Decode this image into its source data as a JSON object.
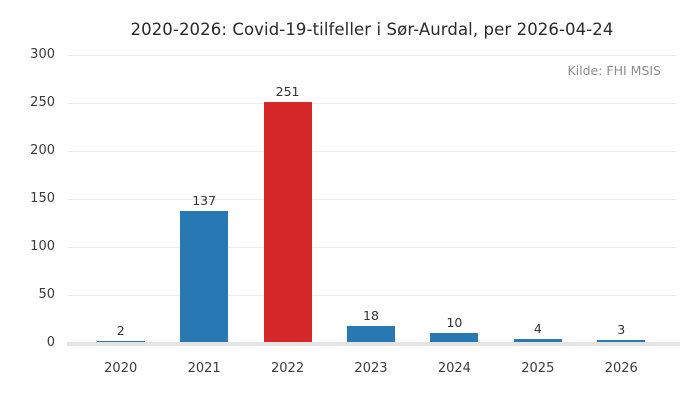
{
  "chart_data": {
    "type": "bar",
    "title": "2020-2026: Covid-19-tilfeller i Sør-Aurdal, per 2026-04-24",
    "source_note": "Kilde: FHI MSIS",
    "categories": [
      "2020",
      "2021",
      "2022",
      "2023",
      "2024",
      "2025",
      "2026"
    ],
    "values": [
      2,
      137,
      251,
      18,
      10,
      4,
      3
    ],
    "bar_colors": [
      "#2878b4",
      "#2878b4",
      "#d62728",
      "#2878b4",
      "#2878b4",
      "#2878b4",
      "#2878b4"
    ],
    "highlighted_category": "2022",
    "yticks": [
      0,
      50,
      100,
      150,
      200,
      250,
      300
    ],
    "ylim": [
      0,
      300
    ],
    "xlabel": "",
    "ylabel": "",
    "grid": "horizontal",
    "legend_position": "none"
  },
  "colors": {
    "background": "#ffffff",
    "bar_default": "#2878b4",
    "bar_highlight": "#d62728",
    "gridline": "#ebebeb",
    "axis_line": "#e3e3e3",
    "title_text": "#2a2a2a",
    "tick_text": "#3c3c3c",
    "value_label_text": "#333333",
    "source_text": "#8c8c8c"
  }
}
